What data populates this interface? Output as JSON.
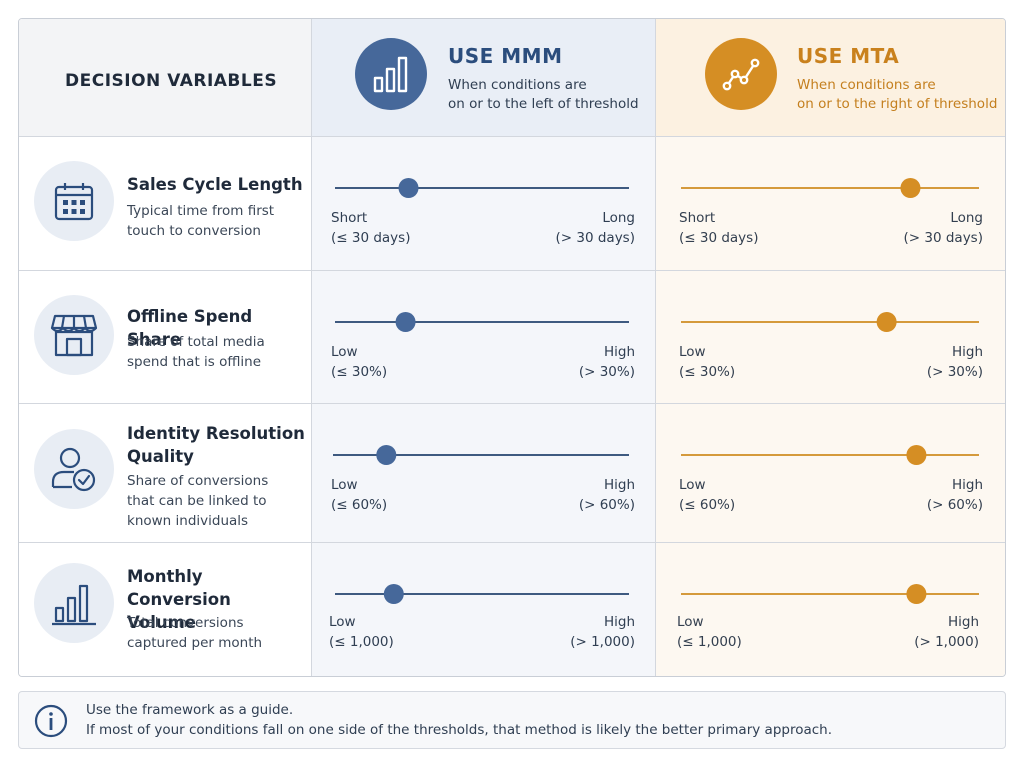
{
  "header": {
    "variables_title": "DECISION VARIABLES",
    "mmm": {
      "title": "USE MMM",
      "subtitle_line1": "When conditions are",
      "subtitle_line2": "on or to the left of threshold",
      "icon": "bar-chart-icon",
      "color": "#46689a"
    },
    "mta": {
      "title": "USE MTA",
      "subtitle_line1": "When conditions are",
      "subtitle_line2": "on or to the right of threshold",
      "icon": "line-chart-icon",
      "color": "#d58e24"
    }
  },
  "rows": [
    {
      "icon": "calendar-icon",
      "title_line1": "Sales Cycle Length",
      "title_line2": "",
      "desc_line1": "Typical time from first",
      "desc_line2": "touch to conversion",
      "desc_line3": "",
      "low_label": "Short",
      "low_range": "(≤ 30 days)",
      "high_label": "Long",
      "high_range": "(> 30 days)",
      "mmm_position": 0.25,
      "mta_position": 0.77
    },
    {
      "icon": "storefront-icon",
      "title_line1": "Offline Spend Share",
      "title_line2": "",
      "desc_line1": "Share of total media",
      "desc_line2": "spend that is offline",
      "desc_line3": "",
      "low_label": "Low",
      "low_range": "(≤ 30%)",
      "high_label": "High",
      "high_range": "(> 30%)",
      "mmm_position": 0.24,
      "mta_position": 0.69
    },
    {
      "icon": "user-check-icon",
      "title_line1": "Identity Resolution",
      "title_line2": "Quality",
      "desc_line1": "Share of conversions",
      "desc_line2": "that can be linked to",
      "desc_line3": "known individuals",
      "low_label": "Low",
      "low_range": "(≤ 60%)",
      "high_label": "High",
      "high_range": "(> 60%)",
      "mmm_position": 0.18,
      "mta_position": 0.79
    },
    {
      "icon": "bar-chart-icon",
      "title_line1": "Monthly Conversion",
      "title_line2": "Volume",
      "desc_line1": "Total conversions",
      "desc_line2": "captured per month",
      "desc_line3": "",
      "low_label": "Low",
      "low_range": "(≤ 1,000)",
      "high_label": "High",
      "high_range": "(> 1,000)",
      "mmm_position": 0.2,
      "mta_position": 0.79
    }
  ],
  "note": {
    "icon": "info-icon",
    "line1": "Use the framework as a guide.",
    "line2": "If most of your conditions fall on one side of the thresholds, that method is likely the better primary approach."
  },
  "colors": {
    "mmm": "#46689a",
    "mta": "#d58e24",
    "mta_line": "#d59a3c",
    "mmm_line": "#3e5a80"
  }
}
